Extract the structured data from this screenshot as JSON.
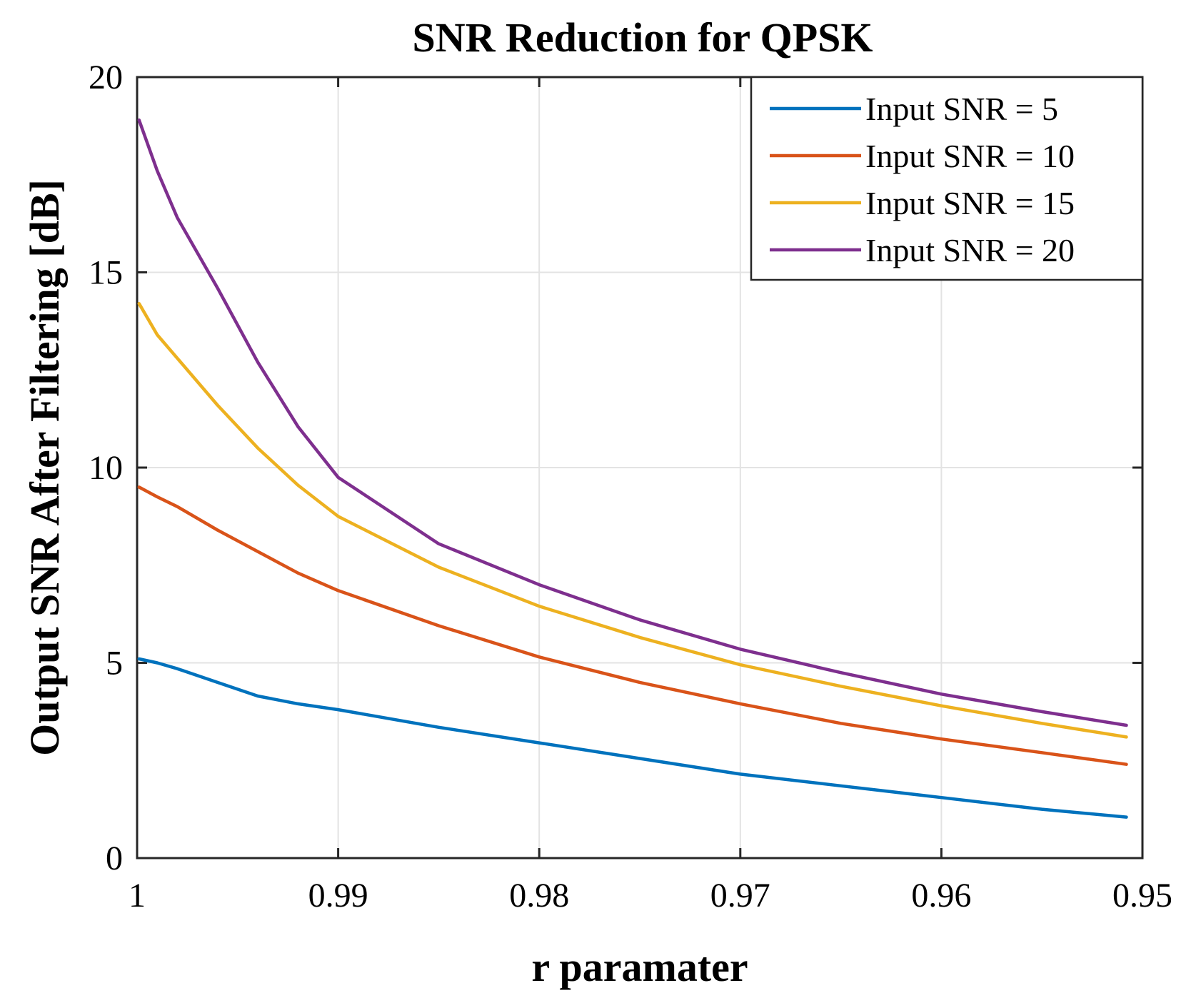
{
  "chart_data": {
    "type": "line",
    "title": "SNR Reduction for QPSK",
    "xlabel": "r paramater",
    "ylabel": "Output SNR After Filtering [dB]",
    "xlim": [
      1,
      0.95
    ],
    "ylim": [
      0,
      20
    ],
    "x_reversed": true,
    "grid": true,
    "legend_position": "top-right",
    "xticks": [
      1,
      0.99,
      0.98,
      0.97,
      0.96,
      0.95
    ],
    "xtick_labels": [
      "1",
      "0.99",
      "0.98",
      "0.97",
      "0.96",
      "0.95"
    ],
    "yticks": [
      0,
      5,
      10,
      15,
      20
    ],
    "ytick_labels": [
      "0",
      "5",
      "10",
      "15",
      "20"
    ],
    "x": [
      0.9999,
      0.999,
      0.998,
      0.996,
      0.994,
      0.992,
      0.99,
      0.985,
      0.98,
      0.975,
      0.97,
      0.965,
      0.96,
      0.955,
      0.9508
    ],
    "series": [
      {
        "name": "Input SNR = 5",
        "color": "#0072BD",
        "values": [
          5.1,
          5.0,
          4.85,
          4.5,
          4.15,
          3.95,
          3.8,
          3.35,
          2.95,
          2.55,
          2.15,
          1.85,
          1.55,
          1.25,
          1.05
        ]
      },
      {
        "name": "Input SNR = 10",
        "color": "#D95319",
        "values": [
          9.5,
          9.25,
          9.0,
          8.4,
          7.85,
          7.3,
          6.85,
          5.95,
          5.15,
          4.5,
          3.95,
          3.45,
          3.05,
          2.7,
          2.4
        ]
      },
      {
        "name": "Input SNR = 15",
        "color": "#EDB120",
        "values": [
          14.2,
          13.4,
          12.8,
          11.6,
          10.5,
          9.55,
          8.75,
          7.45,
          6.45,
          5.65,
          4.95,
          4.4,
          3.9,
          3.45,
          3.1
        ]
      },
      {
        "name": "Input SNR = 20",
        "color": "#7E2F8E",
        "values": [
          18.9,
          17.6,
          16.4,
          14.6,
          12.7,
          11.05,
          9.75,
          8.05,
          7.0,
          6.1,
          5.35,
          4.75,
          4.2,
          3.75,
          3.4
        ]
      }
    ]
  }
}
